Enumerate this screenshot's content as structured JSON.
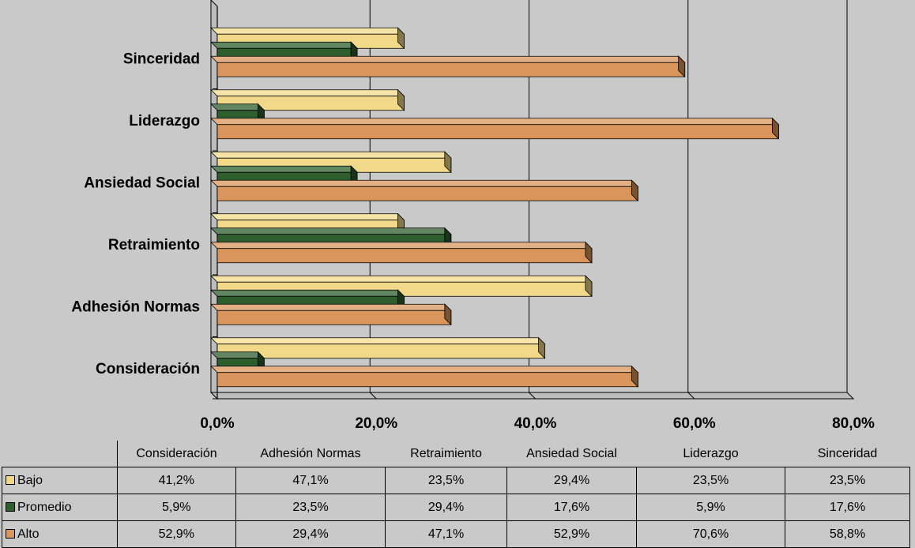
{
  "chart_data": {
    "type": "bar",
    "orientation": "horizontal",
    "categories": [
      "Consideración",
      "Adhesión Normas",
      "Retraimiento",
      "Ansiedad Social",
      "Liderazgo",
      "Sinceridad"
    ],
    "series": [
      {
        "name": "Bajo",
        "color": "#f2d98a",
        "values": [
          41.2,
          47.1,
          23.5,
          29.4,
          23.5,
          23.5
        ],
        "labels": [
          "41,2%",
          "47,1%",
          "23,5%",
          "29,4%",
          "23,5%",
          "23,5%"
        ]
      },
      {
        "name": "Promedio",
        "color": "#2e5e2e",
        "values": [
          5.9,
          23.5,
          29.4,
          17.6,
          5.9,
          17.6
        ],
        "labels": [
          "5,9%",
          "23,5%",
          "29,4%",
          "17,6%",
          "5,9%",
          "17,6%"
        ]
      },
      {
        "name": "Alto",
        "color": "#d9955c",
        "values": [
          52.9,
          29.4,
          47.1,
          52.9,
          70.6,
          58.8
        ],
        "labels": [
          "52,9%",
          "29,4%",
          "47,1%",
          "52,9%",
          "70,6%",
          "58,8%"
        ]
      }
    ],
    "xlim": [
      0,
      80
    ],
    "xticks": [
      "0,0%",
      "20,0%",
      "40,0%",
      "60,0%",
      "80,0%"
    ],
    "grid": true,
    "legend": "data-table-below"
  }
}
